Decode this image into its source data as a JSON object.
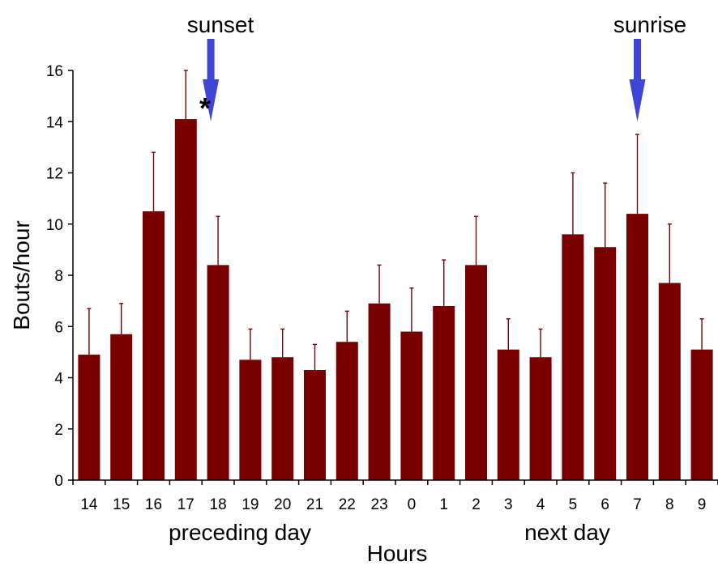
{
  "colors": {
    "bar": "#7a0000",
    "error_bar": "#7a0000",
    "event_arrow": "#3f46d6",
    "axis": "#000000"
  },
  "chart_data": {
    "type": "bar",
    "xlabel": "Hours",
    "ylabel": "Bouts/hour",
    "ylim": [
      0,
      16
    ],
    "yticks": [
      "0",
      "2",
      "4",
      "6",
      "8",
      "10",
      "12",
      "14",
      "16"
    ],
    "grid": false,
    "legend": "none",
    "categories": [
      "14",
      "15",
      "16",
      "17",
      "18",
      "19",
      "20",
      "21",
      "22",
      "23",
      "0",
      "1",
      "2",
      "3",
      "4",
      "5",
      "6",
      "7",
      "8",
      "9"
    ],
    "series": [
      {
        "values": [
          4.9,
          5.7,
          10.5,
          14.1,
          8.4,
          4.7,
          4.8,
          4.3,
          5.4,
          6.9,
          5.8,
          6.8,
          8.4,
          5.1,
          4.8,
          9.6,
          9.1,
          10.4,
          7.7,
          5.1
        ],
        "error_upper": [
          6.7,
          6.9,
          12.8,
          16.0,
          10.3,
          5.9,
          5.9,
          5.3,
          6.6,
          8.4,
          7.5,
          8.6,
          10.3,
          6.3,
          5.9,
          12.0,
          11.6,
          13.5,
          10.0,
          6.3
        ]
      }
    ],
    "groups": [
      {
        "label": "preceding day",
        "categories": [
          "14",
          "15",
          "16",
          "17",
          "18",
          "19",
          "20",
          "21",
          "22",
          "23"
        ]
      },
      {
        "label": "next day",
        "categories": [
          "0",
          "1",
          "2",
          "3",
          "4",
          "5",
          "6",
          "7",
          "8",
          "9"
        ]
      }
    ],
    "events": [
      {
        "label": "sunset",
        "at_hour": "18"
      },
      {
        "label": "sunrise",
        "at_hour": "7"
      }
    ],
    "annotations": [
      {
        "text": "*",
        "at_hour": "17"
      }
    ]
  }
}
